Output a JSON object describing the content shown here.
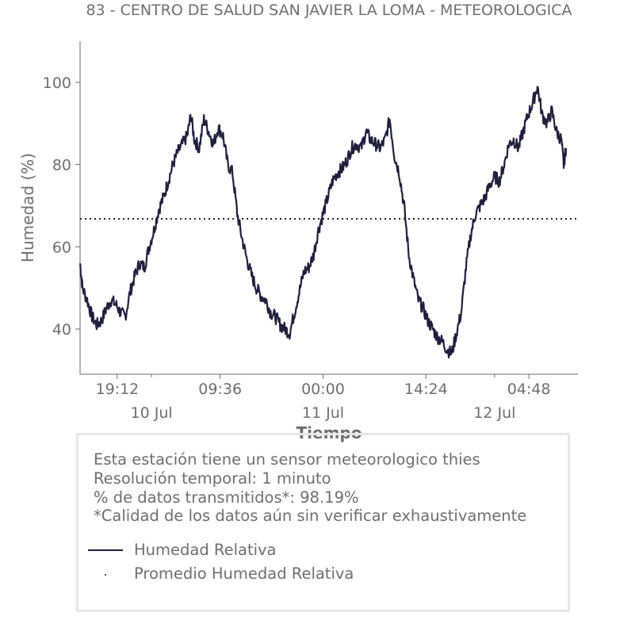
{
  "title": "83 - CENTRO DE SALUD SAN JAVIER LA LOMA - METEOROLOGICA",
  "chart_data": {
    "type": "line",
    "title": "83 - CENTRO DE SALUD SAN JAVIER LA LOMA - METEOROLOGICA",
    "xlabel": "Tiempo",
    "ylabel": "Humedad (%)",
    "x_range": [
      "2024-07-09 14:00",
      "2024-07-12 11:40"
    ],
    "ylim": [
      29,
      110
    ],
    "y_ticks": [
      40,
      60,
      80,
      100
    ],
    "x_ticks": [
      {
        "time": "2024-07-09 19:12",
        "label": "19:12"
      },
      {
        "time": "2024-07-10 09:36",
        "label": "09:36"
      },
      {
        "time": "2024-07-11 00:00",
        "label": "00:00"
      },
      {
        "time": "2024-07-11 14:24",
        "label": "14:24"
      },
      {
        "time": "2024-07-12 04:48",
        "label": "04:48"
      }
    ],
    "x_date_labels": [
      {
        "time": "2024-07-10 00:00",
        "label": "10 Jul"
      },
      {
        "time": "2024-07-11 00:00",
        "label": "11 Jul"
      },
      {
        "time": "2024-07-12 00:00",
        "label": "12 Jul"
      }
    ],
    "grid": false,
    "series": [
      {
        "name": "Humedad Relativa",
        "color": "#1f1f3d",
        "style": "solid",
        "points": [
          [
            "2024-07-09 14:00",
            56
          ],
          [
            "2024-07-09 14:20",
            50
          ],
          [
            "2024-07-09 15:00",
            47
          ],
          [
            "2024-07-09 15:40",
            43
          ],
          [
            "2024-07-09 16:20",
            41
          ],
          [
            "2024-07-09 17:00",
            42
          ],
          [
            "2024-07-09 17:40",
            45
          ],
          [
            "2024-07-09 18:20",
            47
          ],
          [
            "2024-07-09 19:00",
            46
          ],
          [
            "2024-07-09 19:40",
            44
          ],
          [
            "2024-07-09 20:20",
            43
          ],
          [
            "2024-07-09 21:00",
            49
          ],
          [
            "2024-07-09 21:40",
            53
          ],
          [
            "2024-07-09 22:20",
            56
          ],
          [
            "2024-07-09 23:00",
            55
          ],
          [
            "2024-07-09 23:40",
            60
          ],
          [
            "2024-07-10 00:20",
            64
          ],
          [
            "2024-07-10 01:00",
            69
          ],
          [
            "2024-07-10 01:40",
            72
          ],
          [
            "2024-07-10 02:20",
            76
          ],
          [
            "2024-07-10 03:00",
            80
          ],
          [
            "2024-07-10 03:40",
            83
          ],
          [
            "2024-07-10 04:20",
            85
          ],
          [
            "2024-07-10 05:00",
            87
          ],
          [
            "2024-07-10 05:30",
            92
          ],
          [
            "2024-07-10 06:00",
            86
          ],
          [
            "2024-07-10 06:40",
            84
          ],
          [
            "2024-07-10 07:20",
            91
          ],
          [
            "2024-07-10 08:00",
            88
          ],
          [
            "2024-07-10 08:40",
            85
          ],
          [
            "2024-07-10 09:20",
            89
          ],
          [
            "2024-07-10 10:00",
            87
          ],
          [
            "2024-07-10 10:40",
            80
          ],
          [
            "2024-07-10 11:20",
            78
          ],
          [
            "2024-07-10 12:00",
            68
          ],
          [
            "2024-07-10 12:40",
            62
          ],
          [
            "2024-07-10 13:20",
            57
          ],
          [
            "2024-07-10 14:00",
            53
          ],
          [
            "2024-07-10 14:40",
            50
          ],
          [
            "2024-07-10 15:20",
            48
          ],
          [
            "2024-07-10 16:00",
            47
          ],
          [
            "2024-07-10 16:40",
            44
          ],
          [
            "2024-07-10 17:20",
            43
          ],
          [
            "2024-07-10 18:00",
            41
          ],
          [
            "2024-07-10 18:40",
            40
          ],
          [
            "2024-07-10 19:20",
            39
          ],
          [
            "2024-07-10 20:00",
            44
          ],
          [
            "2024-07-10 20:40",
            49
          ],
          [
            "2024-07-10 21:20",
            54
          ],
          [
            "2024-07-10 22:00",
            55
          ],
          [
            "2024-07-10 22:40",
            58
          ],
          [
            "2024-07-10 23:20",
            64
          ],
          [
            "2024-07-11 00:00",
            68
          ],
          [
            "2024-07-11 00:40",
            72
          ],
          [
            "2024-07-11 01:20",
            76
          ],
          [
            "2024-07-11 02:00",
            78
          ],
          [
            "2024-07-11 02:40",
            79
          ],
          [
            "2024-07-11 03:20",
            81
          ],
          [
            "2024-07-11 04:00",
            84
          ],
          [
            "2024-07-11 04:40",
            85
          ],
          [
            "2024-07-11 05:20",
            84
          ],
          [
            "2024-07-11 06:00",
            88
          ],
          [
            "2024-07-11 06:40",
            86
          ],
          [
            "2024-07-11 07:20",
            85
          ],
          [
            "2024-07-11 08:00",
            84
          ],
          [
            "2024-07-11 08:40",
            86
          ],
          [
            "2024-07-11 09:20",
            91
          ],
          [
            "2024-07-11 10:00",
            82
          ],
          [
            "2024-07-11 10:40",
            78
          ],
          [
            "2024-07-11 11:20",
            70
          ],
          [
            "2024-07-11 12:00",
            58
          ],
          [
            "2024-07-11 12:40",
            52
          ],
          [
            "2024-07-11 13:20",
            47
          ],
          [
            "2024-07-11 14:00",
            45
          ],
          [
            "2024-07-11 14:40",
            42
          ],
          [
            "2024-07-11 15:20",
            40
          ],
          [
            "2024-07-11 16:00",
            38
          ],
          [
            "2024-07-11 16:40",
            37
          ],
          [
            "2024-07-11 17:20",
            35
          ],
          [
            "2024-07-11 18:00",
            34
          ],
          [
            "2024-07-11 18:40",
            39
          ],
          [
            "2024-07-11 19:20",
            44
          ],
          [
            "2024-07-11 20:00",
            55
          ],
          [
            "2024-07-11 20:40",
            63
          ],
          [
            "2024-07-11 21:20",
            68
          ],
          [
            "2024-07-11 22:00",
            70
          ],
          [
            "2024-07-11 22:40",
            72
          ],
          [
            "2024-07-11 23:20",
            75
          ],
          [
            "2024-07-12 00:00",
            77
          ],
          [
            "2024-07-12 00:40",
            76
          ],
          [
            "2024-07-12 01:20",
            80
          ],
          [
            "2024-07-12 02:00",
            85
          ],
          [
            "2024-07-12 02:40",
            86
          ],
          [
            "2024-07-12 03:20",
            84
          ],
          [
            "2024-07-12 04:00",
            88
          ],
          [
            "2024-07-12 04:40",
            92
          ],
          [
            "2024-07-12 05:20",
            95
          ],
          [
            "2024-07-12 06:00",
            99
          ],
          [
            "2024-07-12 06:40",
            92
          ],
          [
            "2024-07-12 07:20",
            90
          ],
          [
            "2024-07-12 08:00",
            93
          ],
          [
            "2024-07-12 08:40",
            88
          ],
          [
            "2024-07-12 09:20",
            86
          ],
          [
            "2024-07-12 09:40",
            80
          ],
          [
            "2024-07-12 10:00",
            84
          ]
        ]
      },
      {
        "name": "Promedio Humedad Relativa",
        "color": "#1f1f3d",
        "style": "dotted",
        "value": 66.8
      }
    ]
  },
  "info": {
    "line1": "Esta estación tiene un sensor meteorologico thies",
    "line2": "Resolución temporal: 1 minuto",
    "line3": "% de datos transmitidos*: 98.19%",
    "line4": "*Calidad de los datos aún sin verificar exhaustivamente"
  },
  "legend": {
    "item1": "Humedad Relativa",
    "item2": "Promedio Humedad Relativa"
  }
}
